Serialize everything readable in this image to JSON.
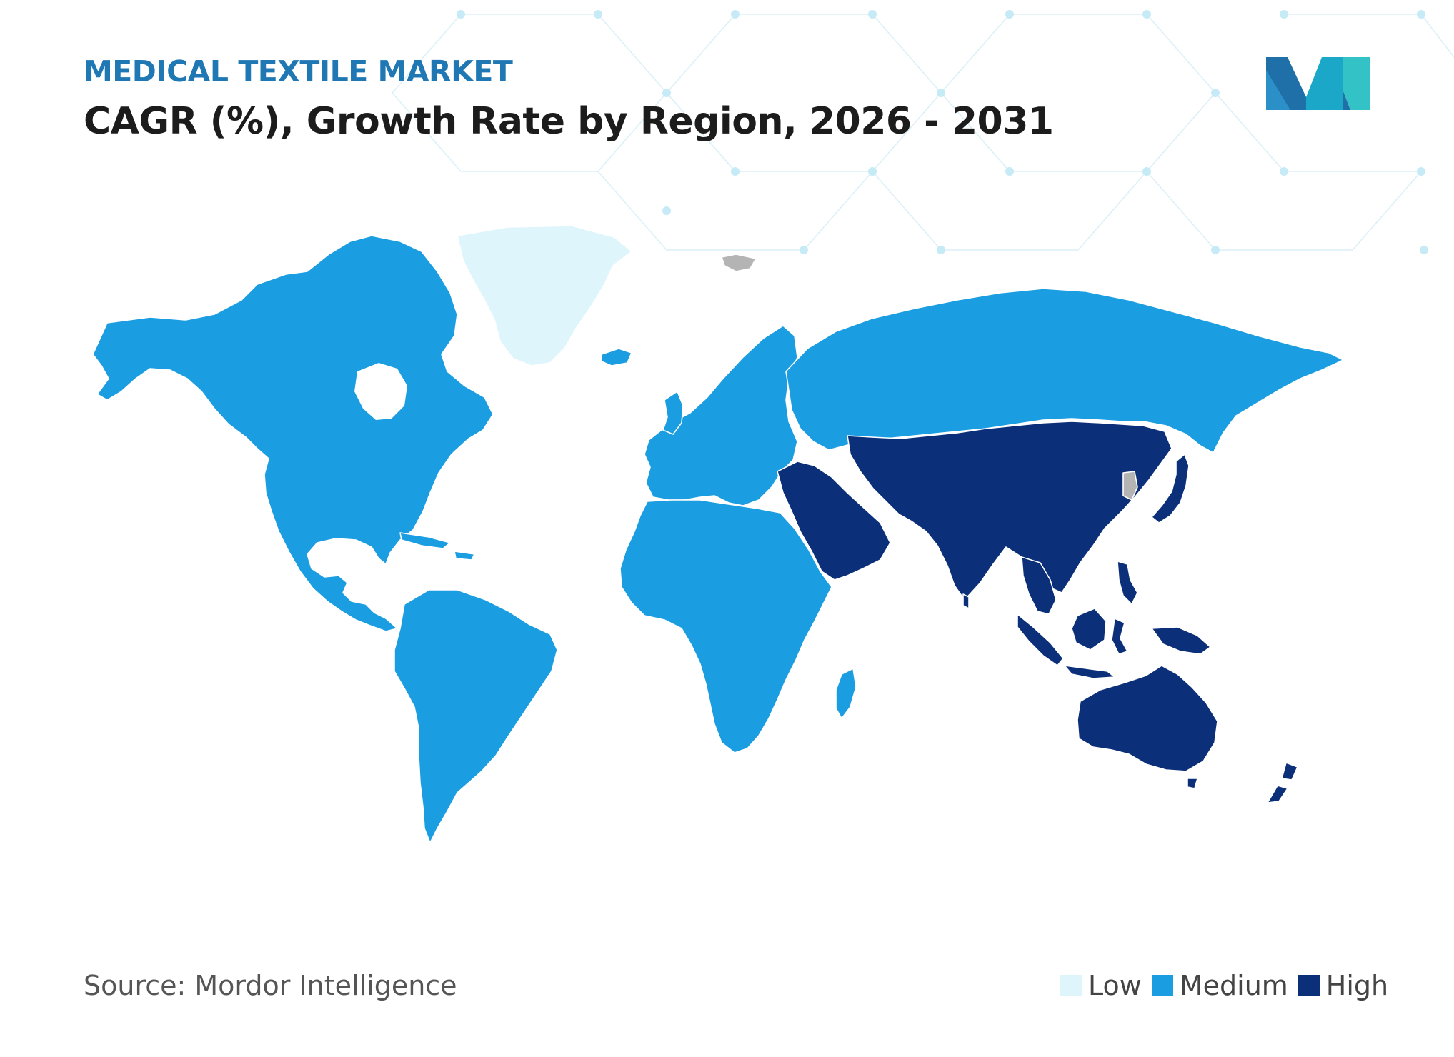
{
  "header": {
    "kicker": "MEDICAL TEXTILE MARKET",
    "title": "CAGR (%), Growth Rate by Region, 2026 - 2031"
  },
  "footer": {
    "source": "Source: Mordor Intelligence"
  },
  "legend": [
    {
      "label": "Low",
      "color": "#dff5fc"
    },
    {
      "label": "Medium",
      "color": "#1b9de1"
    },
    {
      "label": "High",
      "color": "#0b2f79"
    }
  ],
  "colors": {
    "no_data": "#b4b4b4",
    "border": "#ffffff",
    "pattern": "#c6ebf6"
  },
  "map": {
    "regions": [
      {
        "name": "Greenland",
        "level": "Low"
      },
      {
        "name": "North America",
        "level": "Medium"
      },
      {
        "name": "South America",
        "level": "Medium"
      },
      {
        "name": "Europe",
        "level": "Medium"
      },
      {
        "name": "Russia",
        "level": "Medium"
      },
      {
        "name": "Africa",
        "level": "Medium"
      },
      {
        "name": "Middle East",
        "level": "High"
      },
      {
        "name": "Central Asia",
        "level": "High"
      },
      {
        "name": "China",
        "level": "High"
      },
      {
        "name": "India",
        "level": "High"
      },
      {
        "name": "Southeast Asia",
        "level": "High"
      },
      {
        "name": "Japan",
        "level": "High"
      },
      {
        "name": "Australia",
        "level": "High"
      },
      {
        "name": "New Zealand",
        "level": "High"
      }
    ]
  }
}
